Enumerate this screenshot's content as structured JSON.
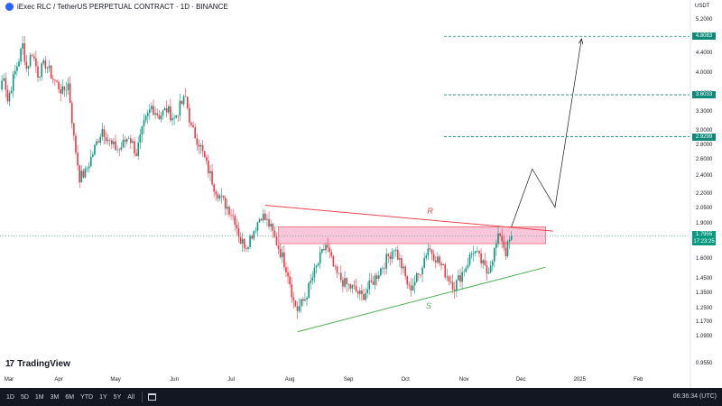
{
  "header": {
    "title": "iExec RLC / TetherUS PERPETUAL CONTRACT · 1D · BINANCE"
  },
  "logo": {
    "text": "TradingView",
    "mark": "17"
  },
  "bottom_bar": {
    "ranges": [
      "1D",
      "5D",
      "1M",
      "3M",
      "6M",
      "YTD",
      "1Y",
      "5Y",
      "All"
    ],
    "time": "06:36:34 (UTC)"
  },
  "colors": {
    "up": "#089981",
    "down": "#f23645",
    "resistance": "#e5484d",
    "support": "#4caf50",
    "zone_fill": "#f7a8c4",
    "target": "#0f8a7a",
    "current": "#089981"
  },
  "chart_data": {
    "type": "candlestick",
    "unit": "USDT",
    "y_scale": "log",
    "ylim": [
      0.92,
      5.5
    ],
    "x_range": [
      "2024-03-01",
      "2025-02-28"
    ],
    "y_ticks": [
      5.2,
      4.8,
      4.4,
      4.0,
      3.6,
      3.3,
      3.0,
      2.8,
      2.6,
      2.4,
      2.2,
      2.05,
      1.9,
      1.75,
      1.6,
      1.45,
      1.35,
      1.25,
      1.17,
      1.09,
      0.955
    ],
    "y_tick_labels": [
      "5.2000",
      "4.8000",
      "4.4000",
      "4.0000",
      "3.6000",
      "3.3000",
      "3.0000",
      "2.8000",
      "2.6000",
      "2.4000",
      "2.2000",
      "2.0500",
      "1.9000",
      "1.7500",
      "1.6000",
      "1.4500",
      "1.3500",
      "1.2500",
      "1.1700",
      "1.0900",
      "0.9550"
    ],
    "x_ticks": [
      {
        "label": "Mar",
        "date": "2024-03-01"
      },
      {
        "label": "Apr",
        "date": "2024-04-01"
      },
      {
        "label": "May",
        "date": "2024-05-01"
      },
      {
        "label": "Jun",
        "date": "2024-06-01"
      },
      {
        "label": "Jul",
        "date": "2024-07-01"
      },
      {
        "label": "Aug",
        "date": "2024-08-01"
      },
      {
        "label": "Sep",
        "date": "2024-09-01"
      },
      {
        "label": "Oct",
        "date": "2024-10-01"
      },
      {
        "label": "Nov",
        "date": "2024-11-01"
      },
      {
        "label": "Dec",
        "date": "2024-12-01"
      },
      {
        "label": "2025",
        "date": "2025-01-01"
      },
      {
        "label": "Feb",
        "date": "2025-02-01"
      }
    ],
    "close_path": [
      [
        "2024-03-01",
        3.7
      ],
      [
        "2024-03-03",
        4.0
      ],
      [
        "2024-03-05",
        3.5
      ],
      [
        "2024-03-08",
        3.9
      ],
      [
        "2024-03-11",
        4.3
      ],
      [
        "2024-03-13",
        4.6
      ],
      [
        "2024-03-15",
        4.1
      ],
      [
        "2024-03-18",
        4.45
      ],
      [
        "2024-03-21",
        4.0
      ],
      [
        "2024-03-25",
        4.2
      ],
      [
        "2024-03-29",
        3.9
      ],
      [
        "2024-04-03",
        3.65
      ],
      [
        "2024-04-06",
        3.8
      ],
      [
        "2024-04-09",
        2.9
      ],
      [
        "2024-04-12",
        2.4
      ],
      [
        "2024-04-15",
        2.45
      ],
      [
        "2024-04-19",
        2.7
      ],
      [
        "2024-04-24",
        3.05
      ],
      [
        "2024-04-29",
        2.8
      ],
      [
        "2024-05-03",
        2.75
      ],
      [
        "2024-05-08",
        2.95
      ],
      [
        "2024-05-12",
        2.7
      ],
      [
        "2024-05-16",
        3.1
      ],
      [
        "2024-05-20",
        3.4
      ],
      [
        "2024-05-24",
        3.25
      ],
      [
        "2024-05-28",
        3.35
      ],
      [
        "2024-06-01",
        3.2
      ],
      [
        "2024-06-04",
        3.4
      ],
      [
        "2024-06-07",
        3.55
      ],
      [
        "2024-06-10",
        3.05
      ],
      [
        "2024-06-14",
        2.85
      ],
      [
        "2024-06-18",
        2.55
      ],
      [
        "2024-06-22",
        2.3
      ],
      [
        "2024-06-26",
        2.15
      ],
      [
        "2024-06-30",
        2.05
      ],
      [
        "2024-07-03",
        1.95
      ],
      [
        "2024-07-06",
        1.75
      ],
      [
        "2024-07-09",
        1.72
      ],
      [
        "2024-07-13",
        1.85
      ],
      [
        "2024-07-17",
        2.0
      ],
      [
        "2024-07-21",
        1.9
      ],
      [
        "2024-07-26",
        1.7
      ],
      [
        "2024-07-31",
        1.5
      ],
      [
        "2024-08-03",
        1.3
      ],
      [
        "2024-08-05",
        1.25
      ],
      [
        "2024-08-09",
        1.32
      ],
      [
        "2024-08-14",
        1.5
      ],
      [
        "2024-08-20",
        1.72
      ],
      [
        "2024-08-25",
        1.5
      ],
      [
        "2024-08-30",
        1.42
      ],
      [
        "2024-09-04",
        1.38
      ],
      [
        "2024-09-08",
        1.33
      ],
      [
        "2024-09-13",
        1.42
      ],
      [
        "2024-09-19",
        1.55
      ],
      [
        "2024-09-25",
        1.7
      ],
      [
        "2024-09-29",
        1.55
      ],
      [
        "2024-10-03",
        1.38
      ],
      [
        "2024-10-08",
        1.48
      ],
      [
        "2024-10-13",
        1.7
      ],
      [
        "2024-10-18",
        1.6
      ],
      [
        "2024-10-22",
        1.5
      ],
      [
        "2024-10-27",
        1.4
      ],
      [
        "2024-11-02",
        1.55
      ],
      [
        "2024-11-06",
        1.68
      ],
      [
        "2024-11-10",
        1.58
      ],
      [
        "2024-11-13",
        1.5
      ],
      [
        "2024-11-16",
        1.62
      ],
      [
        "2024-11-20",
        1.82
      ],
      [
        "2024-11-23",
        1.66
      ],
      [
        "2024-11-26",
        1.7955
      ]
    ],
    "current_price": 1.7955,
    "current_price_label": "1.7955",
    "countdown_label": "17:23:25",
    "target_levels": [
      {
        "price": 4.8083,
        "label": "4.8083"
      },
      {
        "price": 3.6033,
        "label": "3.6033"
      },
      {
        "price": 2.9299,
        "label": "2.9299"
      }
    ],
    "resistance": {
      "label": "R",
      "from": [
        "2024-07-19",
        2.09
      ],
      "to": [
        "2024-12-18",
        1.84
      ]
    },
    "support": {
      "label": "S",
      "from": [
        "2024-08-05",
        1.12
      ],
      "to": [
        "2024-12-14",
        1.54
      ]
    },
    "zone": {
      "from": "2024-07-26",
      "to": "2024-12-14",
      "low": 1.73,
      "high": 1.88
    },
    "projection": [
      [
        "2024-11-26",
        1.88
      ],
      [
        "2024-12-07",
        2.5
      ],
      [
        "2024-12-19",
        2.07
      ],
      [
        "2025-01-02",
        4.75
      ]
    ]
  }
}
